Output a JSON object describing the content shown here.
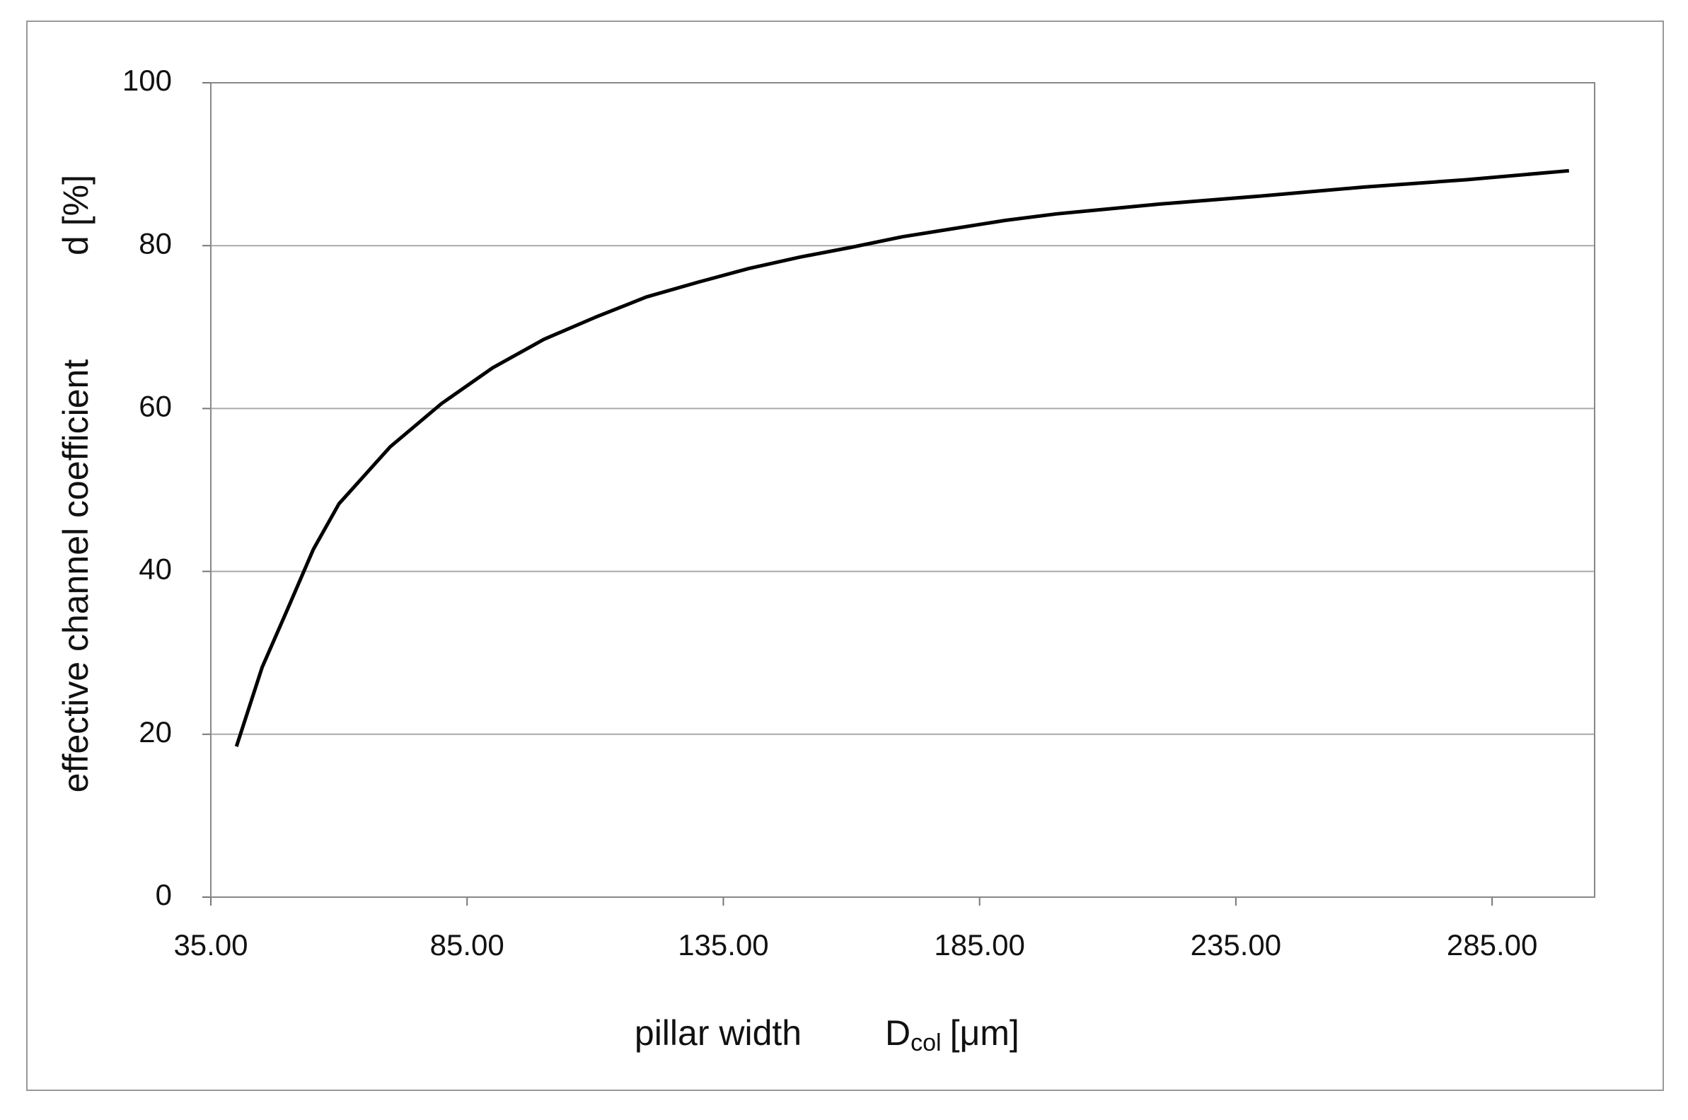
{
  "chart_data": {
    "type": "line",
    "xlabel": "pillar width",
    "xlabel_symbol": "D",
    "xlabel_subscript": "col",
    "xlabel_unit": "[μm]",
    "ylabel": "effective channel coefficient",
    "ylabel_symbol": "d [%]",
    "x": [
      40,
      45,
      50,
      55,
      60,
      70,
      80,
      90,
      100,
      110,
      120,
      130,
      140,
      150,
      160,
      170,
      180,
      190,
      200,
      220,
      240,
      260,
      280,
      300
    ],
    "series": [
      {
        "color": "#000000",
        "values": [
          18.5,
          28.2,
          35.4,
          42.7,
          48.3,
          55.3,
          60.6,
          65,
          68.5,
          71.2,
          73.7,
          75.5,
          77.2,
          78.6,
          79.8,
          81.1,
          82.1,
          83.1,
          83.9,
          85.1,
          86.1,
          87.2,
          88.1,
          89.2
        ]
      }
    ],
    "xlim": [
      35,
      305
    ],
    "xticks": [
      {
        "value": 35,
        "label": "35.00"
      },
      {
        "value": 85,
        "label": "85.00"
      },
      {
        "value": 135,
        "label": "135.00"
      },
      {
        "value": 185,
        "label": "185.00"
      },
      {
        "value": 235,
        "label": "235.00"
      },
      {
        "value": 285,
        "label": "285.00"
      }
    ],
    "ylim": [
      0,
      100
    ],
    "yticks": [
      0,
      20,
      40,
      60,
      80,
      100
    ],
    "grid": true
  }
}
